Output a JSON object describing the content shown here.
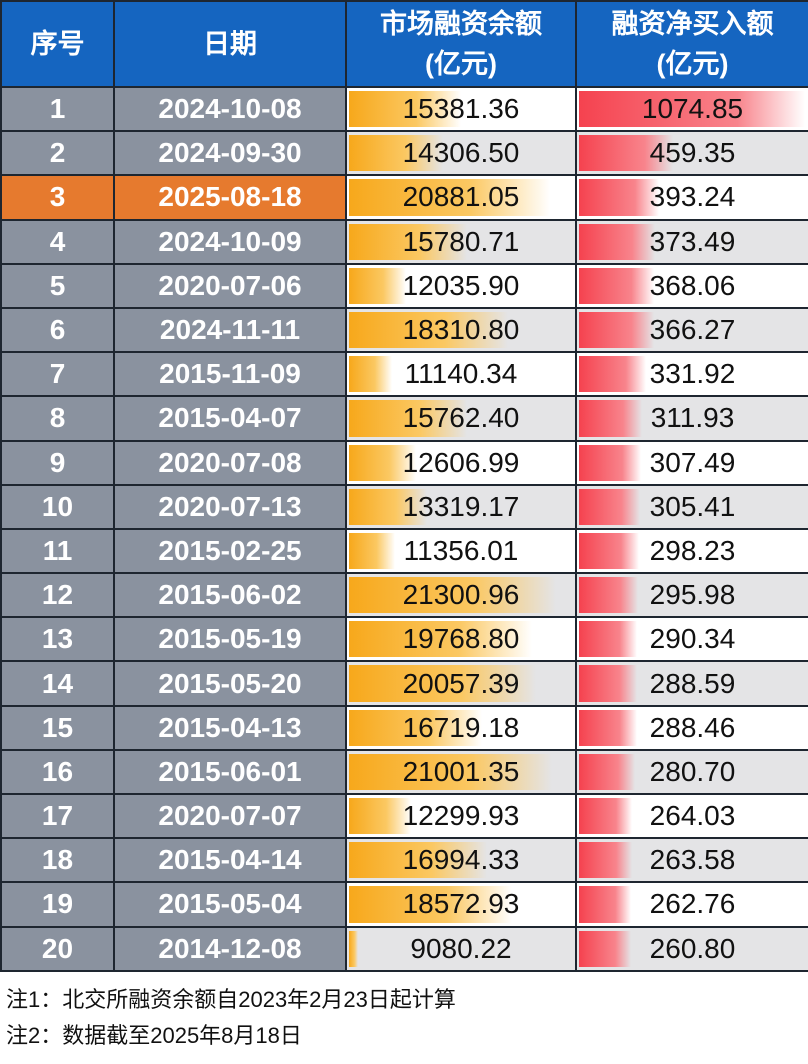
{
  "header": {
    "index": "序号",
    "date": "日期",
    "balance": [
      "市场融资余额",
      "(亿元)"
    ],
    "netbuy": [
      "融资净买入额",
      "(亿元)"
    ]
  },
  "highlight_row": 3,
  "colors": {
    "header": "#1565c0",
    "highlight": "#e67a2e",
    "balance_bar": "#f7a81b",
    "netbuy_bar": "#f5424f"
  },
  "rows": [
    {
      "index": "1",
      "date": "2024-10-08",
      "balance": "15381.36",
      "netbuy": "1074.85"
    },
    {
      "index": "2",
      "date": "2024-09-30",
      "balance": "14306.50",
      "netbuy": "459.35"
    },
    {
      "index": "3",
      "date": "2025-08-18",
      "balance": "20881.05",
      "netbuy": "393.24"
    },
    {
      "index": "4",
      "date": "2024-10-09",
      "balance": "15780.71",
      "netbuy": "373.49"
    },
    {
      "index": "5",
      "date": "2020-07-06",
      "balance": "12035.90",
      "netbuy": "368.06"
    },
    {
      "index": "6",
      "date": "2024-11-11",
      "balance": "18310.80",
      "netbuy": "366.27"
    },
    {
      "index": "7",
      "date": "2015-11-09",
      "balance": "11140.34",
      "netbuy": "331.92"
    },
    {
      "index": "8",
      "date": "2015-04-07",
      "balance": "15762.40",
      "netbuy": "311.93"
    },
    {
      "index": "9",
      "date": "2020-07-08",
      "balance": "12606.99",
      "netbuy": "307.49"
    },
    {
      "index": "10",
      "date": "2020-07-13",
      "balance": "13319.17",
      "netbuy": "305.41"
    },
    {
      "index": "11",
      "date": "2015-02-25",
      "balance": "11356.01",
      "netbuy": "298.23"
    },
    {
      "index": "12",
      "date": "2015-06-02",
      "balance": "21300.96",
      "netbuy": "295.98"
    },
    {
      "index": "13",
      "date": "2015-05-19",
      "balance": "19768.80",
      "netbuy": "290.34"
    },
    {
      "index": "14",
      "date": "2015-05-20",
      "balance": "20057.39",
      "netbuy": "288.59"
    },
    {
      "index": "15",
      "date": "2015-04-13",
      "balance": "16719.18",
      "netbuy": "288.46"
    },
    {
      "index": "16",
      "date": "2015-06-01",
      "balance": "21001.35",
      "netbuy": "280.70"
    },
    {
      "index": "17",
      "date": "2020-07-07",
      "balance": "12299.93",
      "netbuy": "264.03"
    },
    {
      "index": "18",
      "date": "2015-04-14",
      "balance": "16994.33",
      "netbuy": "263.58"
    },
    {
      "index": "19",
      "date": "2015-05-04",
      "balance": "18572.93",
      "netbuy": "262.76"
    },
    {
      "index": "20",
      "date": "2014-12-08",
      "balance": "9080.22",
      "netbuy": "260.80"
    }
  ],
  "notes": [
    "注1：北交所融资余额自2023年2月23日起计算",
    "注2：数据截至2025年8月18日"
  ]
}
